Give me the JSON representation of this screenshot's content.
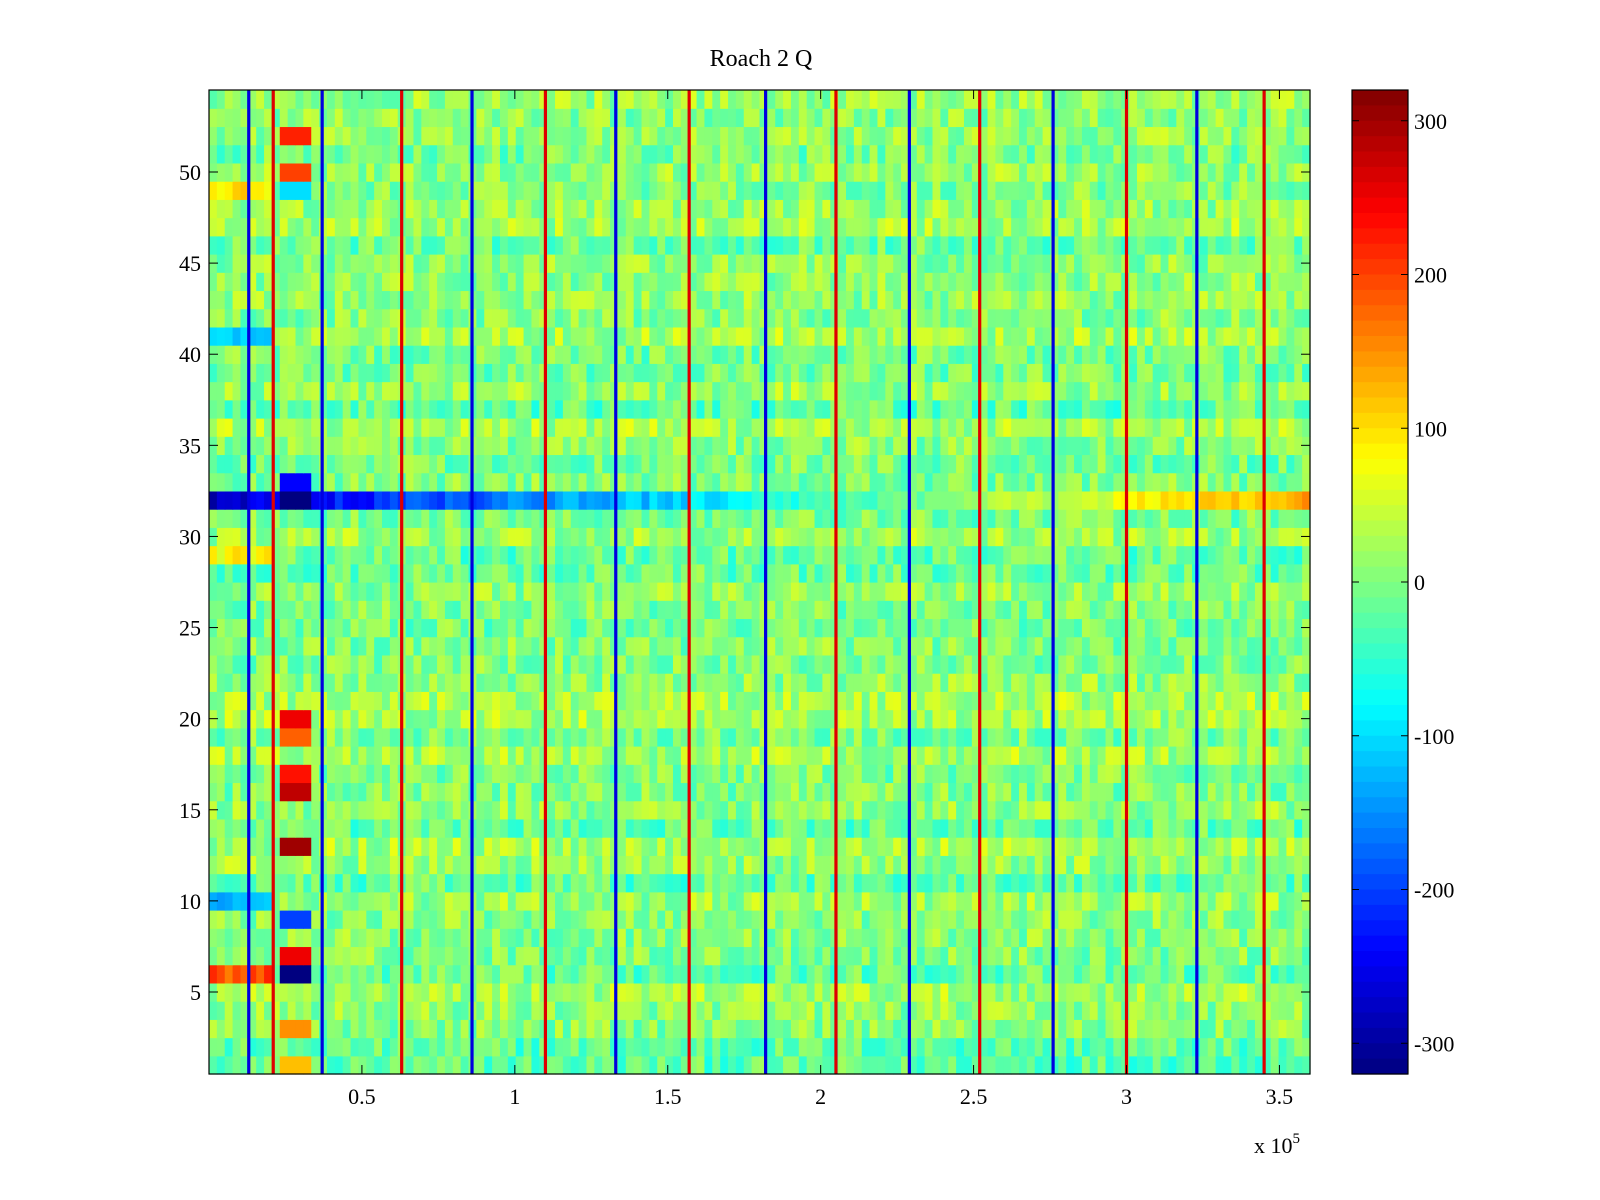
{
  "chart_data": {
    "type": "heatmap",
    "title": "Roach 2 Q",
    "xlabel": "",
    "ylabel": "",
    "x_exponent_label": "x 10",
    "x_exponent": "5",
    "xlim": [
      0,
      3.6
    ],
    "ylim": [
      0.5,
      54.5
    ],
    "x_ticks": [
      "0.5",
      "1",
      "1.5",
      "2",
      "2.5",
      "3",
      "3.5"
    ],
    "x_tick_values": [
      0.5,
      1,
      1.5,
      2,
      2.5,
      3,
      3.5
    ],
    "y_ticks": [
      "5",
      "10",
      "15",
      "20",
      "25",
      "30",
      "35",
      "40",
      "45",
      "50"
    ],
    "y_tick_values": [
      5,
      10,
      15,
      20,
      25,
      30,
      35,
      40,
      45,
      50
    ],
    "rows": 54,
    "colormap": "jet",
    "colorbar": {
      "ticks": [
        "300",
        "200",
        "100",
        "0",
        "-100",
        "-200",
        "-300"
      ],
      "tick_values": [
        300,
        200,
        100,
        0,
        -100,
        -200,
        -300
      ],
      "range": [
        -320,
        320
      ]
    },
    "background_value": 0,
    "vertical_stripe_x": [
      0.13,
      0.21,
      0.37,
      0.63,
      0.86,
      1.1,
      1.33,
      1.57,
      1.82,
      2.05,
      2.29,
      2.52,
      2.76,
      3.0,
      3.23,
      3.45
    ],
    "highlight_row": {
      "row": 32,
      "value_start": -280,
      "value_end": 140
    },
    "burst_column_x": [
      0.24,
      0.34
    ],
    "burst_values": [
      {
        "row": 52,
        "value": 220
      },
      {
        "row": 50,
        "value": 200
      },
      {
        "row": 49,
        "value": -100
      },
      {
        "row": 33,
        "value": -240
      },
      {
        "row": 32,
        "value": -320
      },
      {
        "row": 20,
        "value": 250
      },
      {
        "row": 19,
        "value": 180
      },
      {
        "row": 17,
        "value": 230
      },
      {
        "row": 16,
        "value": 280
      },
      {
        "row": 13,
        "value": 300
      },
      {
        "row": 9,
        "value": -200
      },
      {
        "row": 7,
        "value": 250
      },
      {
        "row": 6,
        "value": -320
      },
      {
        "row": 3,
        "value": 150
      },
      {
        "row": 1,
        "value": 120
      }
    ],
    "left_band_values": [
      {
        "row": 49,
        "value": 100
      },
      {
        "row": 41,
        "value": -100
      },
      {
        "row": 29,
        "value": 80
      },
      {
        "row": 10,
        "value": -120
      },
      {
        "row": 6,
        "value": 190
      }
    ],
    "grid": false
  }
}
